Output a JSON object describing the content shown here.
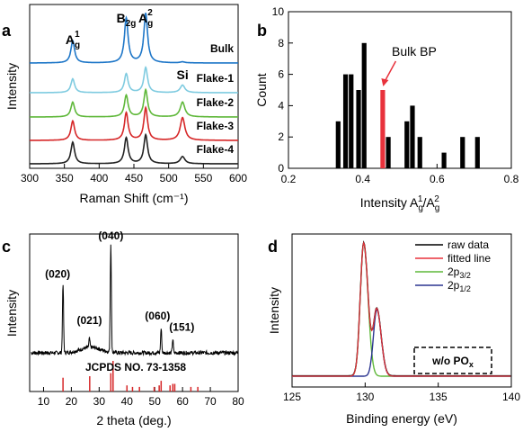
{
  "panels": [
    {
      "label": "a"
    },
    {
      "label": "b"
    },
    {
      "label": "c"
    },
    {
      "label": "d"
    }
  ],
  "chart_data": [
    {
      "type": "line",
      "xlabel": "Raman Shift (cm⁻¹)",
      "ylabel": "Intensity",
      "xlim": [
        300,
        600
      ],
      "xticks": [
        300,
        350,
        400,
        450,
        500,
        550,
        600
      ],
      "peaks_cm-1": [
        362,
        439,
        467,
        520
      ],
      "peak_labels": [
        {
          "text": "A",
          "sub": "g",
          "sup": "1",
          "x": 362
        },
        {
          "text": "B",
          "sub": "2g",
          "sup": "",
          "x": 439
        },
        {
          "text": "A",
          "sub": "g",
          "sup": "2",
          "x": 467
        },
        {
          "text": "Si",
          "sub": "",
          "sup": "",
          "x": 520
        }
      ],
      "series": [
        {
          "name": "Bulk",
          "color": "#1f77c8",
          "peaks": [
            362,
            439,
            467
          ],
          "heights": [
            0.45,
            0.9,
            1.0
          ],
          "si": 0.02
        },
        {
          "name": "Flake-1",
          "color": "#7fcbe0",
          "peaks": [
            362,
            439,
            467
          ],
          "heights": [
            0.55,
            0.75,
            1.0
          ],
          "si": 0.3
        },
        {
          "name": "Flake-2",
          "color": "#5fb83a",
          "peaks": [
            362,
            439,
            467
          ],
          "heights": [
            0.55,
            0.8,
            1.0
          ],
          "si": 0.55
        },
        {
          "name": "Flake-3",
          "color": "#d62728",
          "peaks": [
            362,
            439,
            467
          ],
          "heights": [
            0.6,
            0.85,
            1.0
          ],
          "si": 0.7
        },
        {
          "name": "Flake-4",
          "color": "#222222",
          "peaks": [
            362,
            439,
            467
          ],
          "heights": [
            0.75,
            0.9,
            1.0
          ],
          "si": 0.25
        }
      ]
    },
    {
      "type": "bar",
      "xlabel_main": "Intensity A",
      "xlabel_sub1": "g",
      "xlabel_sup1": "1",
      "xlabel_mid": "/A",
      "xlabel_sub2": "g",
      "xlabel_sup2": "2",
      "ylabel": "Count",
      "xlim": [
        0.2,
        0.8
      ],
      "ylim": [
        0,
        10
      ],
      "xticks": [
        0.2,
        0.4,
        0.6,
        0.8
      ],
      "yticks": [
        0,
        2,
        4,
        6,
        8,
        10
      ],
      "bin_width": 0.015,
      "x": [
        0.335,
        0.355,
        0.37,
        0.39,
        0.405,
        0.455,
        0.47,
        0.52,
        0.535,
        0.555,
        0.62,
        0.67,
        0.71
      ],
      "values": [
        3,
        6,
        6,
        5,
        8,
        5,
        2,
        3,
        4,
        2,
        1,
        2,
        2
      ],
      "colors": [
        "#000",
        "#000",
        "#000",
        "#000",
        "#000",
        "#e8323c",
        "#000",
        "#000",
        "#000",
        "#000",
        "#000",
        "#000",
        "#000"
      ],
      "annotation": "Bulk BP",
      "annotation_target_x": 0.455
    },
    {
      "type": "line",
      "xlabel": "2 theta (deg.)",
      "ylabel": "Intensity",
      "xlim": [
        5,
        80
      ],
      "xticks": [
        10,
        20,
        30,
        40,
        50,
        60,
        70,
        80
      ],
      "peaks": [
        {
          "x": 17,
          "h": 0.62,
          "label": "(020)"
        },
        {
          "x": 26.5,
          "h": 0.08,
          "label": "(021)"
        },
        {
          "x": 34.2,
          "h": 1.0,
          "label": "(040)"
        },
        {
          "x": 52.3,
          "h": 0.22,
          "label": "(060)"
        },
        {
          "x": 56.5,
          "h": 0.12,
          "label": "(151)"
        }
      ],
      "reference": "JCPDS NO. 73-1358",
      "ref_lines_x": [
        17,
        26.6,
        34.2,
        35.0,
        40.0,
        42.0,
        44.5,
        49.8,
        51.6,
        52.3,
        55.5,
        56.5,
        57.2,
        63.0,
        65.5
      ],
      "ref_lines_h": [
        0.45,
        0.5,
        0.6,
        1.0,
        0.2,
        0.15,
        0.15,
        0.15,
        0.2,
        0.35,
        0.2,
        0.25,
        0.25,
        0.15,
        0.15
      ],
      "ref_color": "#d62728"
    },
    {
      "type": "line",
      "xlabel": "Binding energy (eV)",
      "ylabel": "Intensity",
      "xlim": [
        125,
        140
      ],
      "xticks": [
        125,
        130,
        135,
        140
      ],
      "series": [
        {
          "name": "raw data",
          "color": "#000000"
        },
        {
          "name": "fitted line",
          "color": "#e8323c"
        },
        {
          "name": "2p",
          "sub": "3/2",
          "color": "#5fb83a",
          "center": 129.9,
          "h": 1.0
        },
        {
          "name": "2p",
          "sub": "1/2",
          "color": "#2c3590",
          "center": 130.8,
          "h": 0.5
        }
      ],
      "annotation": "w/o PO",
      "annotation_sub": "x"
    }
  ]
}
